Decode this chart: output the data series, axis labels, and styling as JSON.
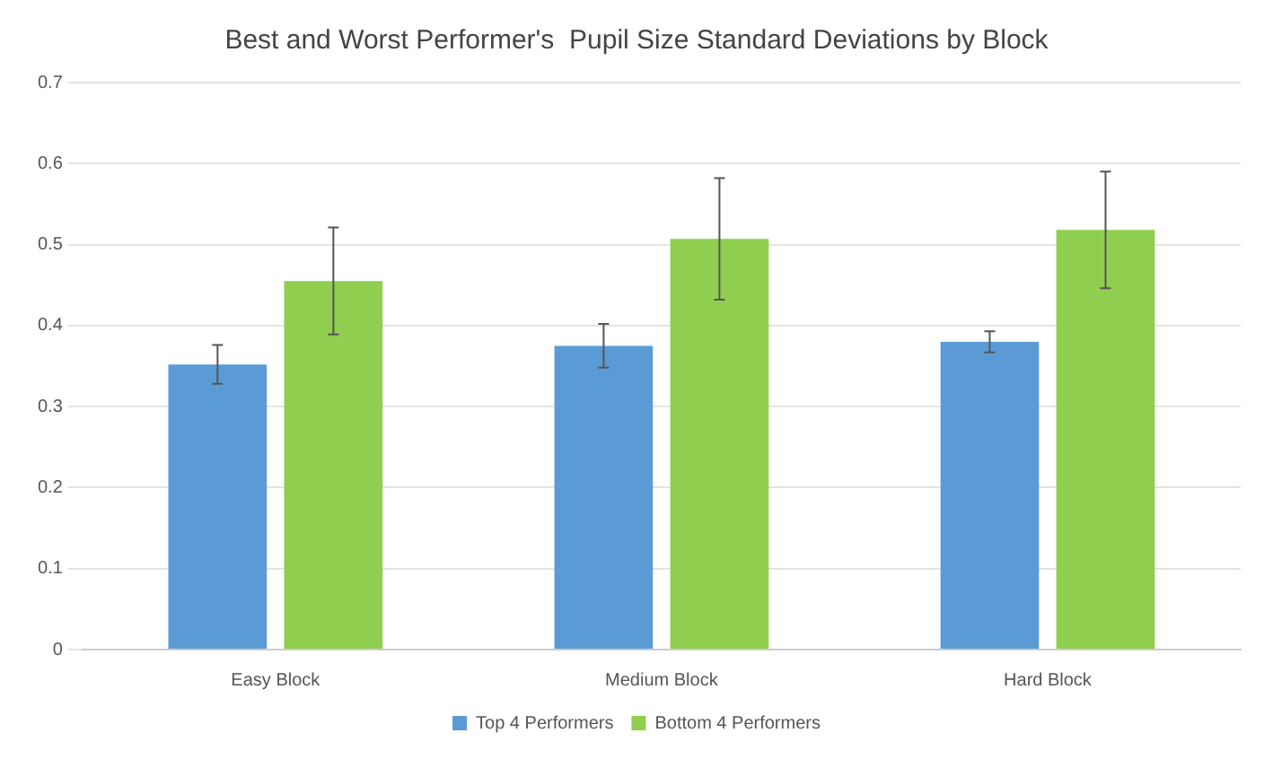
{
  "chart_data": {
    "type": "bar",
    "title": "Best and Worst Performer's  Pupil Size Standard Deviations by Block",
    "categories": [
      "Easy Block",
      "Medium Block",
      "Hard Block"
    ],
    "series": [
      {
        "name": "Top 4 Performers",
        "color": "#5b9bd5",
        "values": [
          0.352,
          0.375,
          0.38
        ],
        "errors": [
          0.024,
          0.027,
          0.013
        ]
      },
      {
        "name": "Bottom 4 Performers",
        "color": "#8fce4e",
        "values": [
          0.455,
          0.507,
          0.518
        ],
        "errors": [
          0.066,
          0.075,
          0.072
        ]
      }
    ],
    "ylim": [
      0,
      0.7
    ],
    "yticks": [
      0,
      0.1,
      0.2,
      0.3,
      0.4,
      0.5,
      0.6,
      0.7
    ],
    "grid": "y",
    "legend": "bottom"
  }
}
